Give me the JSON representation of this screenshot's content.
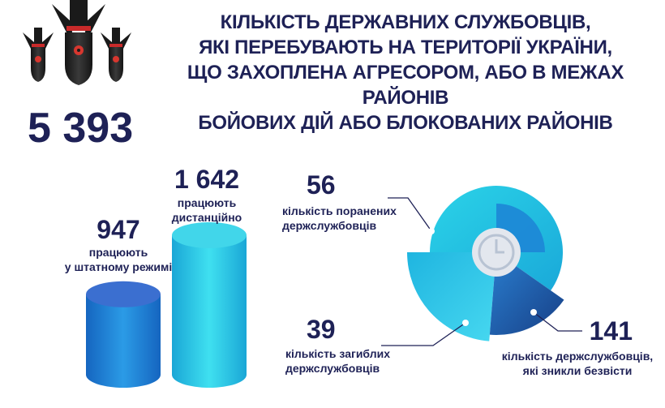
{
  "title": {
    "lines": [
      "КІЛЬКІСТЬ ДЕРЖАВНИХ СЛУЖБОВЦІВ,",
      "ЯКІ ПЕРЕБУВАЮТЬ НА ТЕРИТОРІЇ УКРАЇНИ,",
      "ЩО ЗАХОПЛЕНА АГРЕСОРОМ, АБО В МЕЖАХ РАЙОНІВ",
      "БОЙОВИХ ДІЙ АБО БЛОКОВАНИХ РАЙОНІВ"
    ]
  },
  "total": "5 393",
  "icons": {
    "bombs": "bomb-icon",
    "center": "clock-icon"
  },
  "colors": {
    "dark": "#1e2156",
    "blue": "#1d86d6",
    "cyan": "#2fc6e4",
    "navy": "#1c4f91",
    "teal": "#2ee0d8"
  },
  "chart_data": [
    {
      "type": "bar",
      "categories": [
        "працюють у штатному режимі",
        "працюють дистанційно"
      ],
      "values": [
        947,
        1642
      ],
      "value_labels": [
        "947",
        "1 642"
      ],
      "label_lines": [
        [
          "працюють",
          "у штатному режимі"
        ],
        [
          "працюють",
          "дистанційно"
        ]
      ]
    },
    {
      "type": "pie",
      "slices": [
        {
          "value": 56,
          "value_label": "56",
          "label_lines": [
            "кількість поранених",
            "держслужбовців"
          ]
        },
        {
          "value": 141,
          "value_label": "141",
          "label_lines": [
            "кількість держслужбовців,",
            "які зникли безвісти"
          ]
        },
        {
          "value": 39,
          "value_label": "39",
          "label_lines": [
            "кількість загиблих",
            "держслужбовців"
          ]
        }
      ]
    }
  ]
}
